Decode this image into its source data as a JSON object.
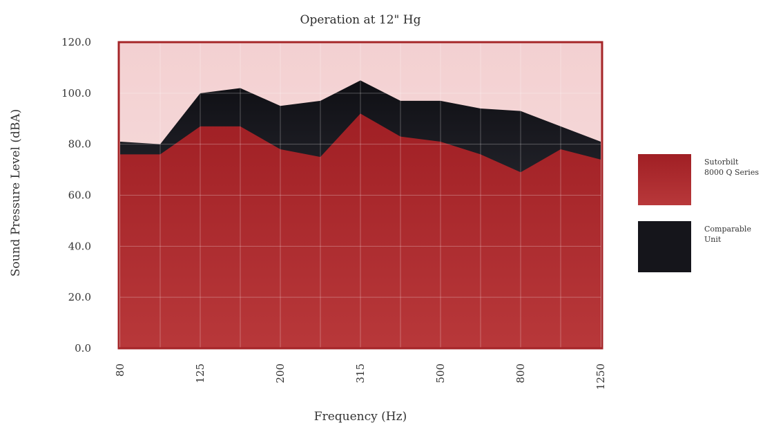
{
  "chart_data": {
    "type": "area",
    "title": "Operation at 12\" Hg",
    "xlabel": "Frequency (Hz)",
    "ylabel": "Sound Pressure Level (dBA)",
    "ylim": [
      0,
      120
    ],
    "yticks": [
      "0.0",
      "20.0",
      "40.0",
      "60.0",
      "80.0",
      "100.0",
      "120.0"
    ],
    "x": [
      "80",
      "100",
      "125",
      "160",
      "200",
      "250",
      "315",
      "400",
      "500",
      "630",
      "800",
      "1000",
      "1250"
    ],
    "xtick_labels": [
      "80",
      "125",
      "200",
      "315",
      "500",
      "800",
      "1250"
    ],
    "grid": true,
    "legend_position": "right",
    "series": [
      {
        "name": "Comparable Unit",
        "color": "#1c1c24",
        "values": [
          81,
          80,
          100,
          102,
          95,
          97,
          105,
          97,
          97,
          94,
          93,
          87,
          81
        ]
      },
      {
        "name": "Sutorbilt 8000 Q Series",
        "color": "#a52528",
        "values": [
          76,
          76,
          87,
          87,
          78,
          75,
          92,
          83,
          81,
          76,
          69,
          78,
          74
        ]
      }
    ],
    "legend": [
      {
        "line1": "Sutorbilt",
        "line2": "8000 Q Series",
        "color": "#a52528"
      },
      {
        "line1": "Comparable",
        "line2": "Unit",
        "color": "#1c1c24"
      }
    ],
    "colors": {
      "background": "#f6d8d8",
      "frame": "#a52528"
    }
  }
}
